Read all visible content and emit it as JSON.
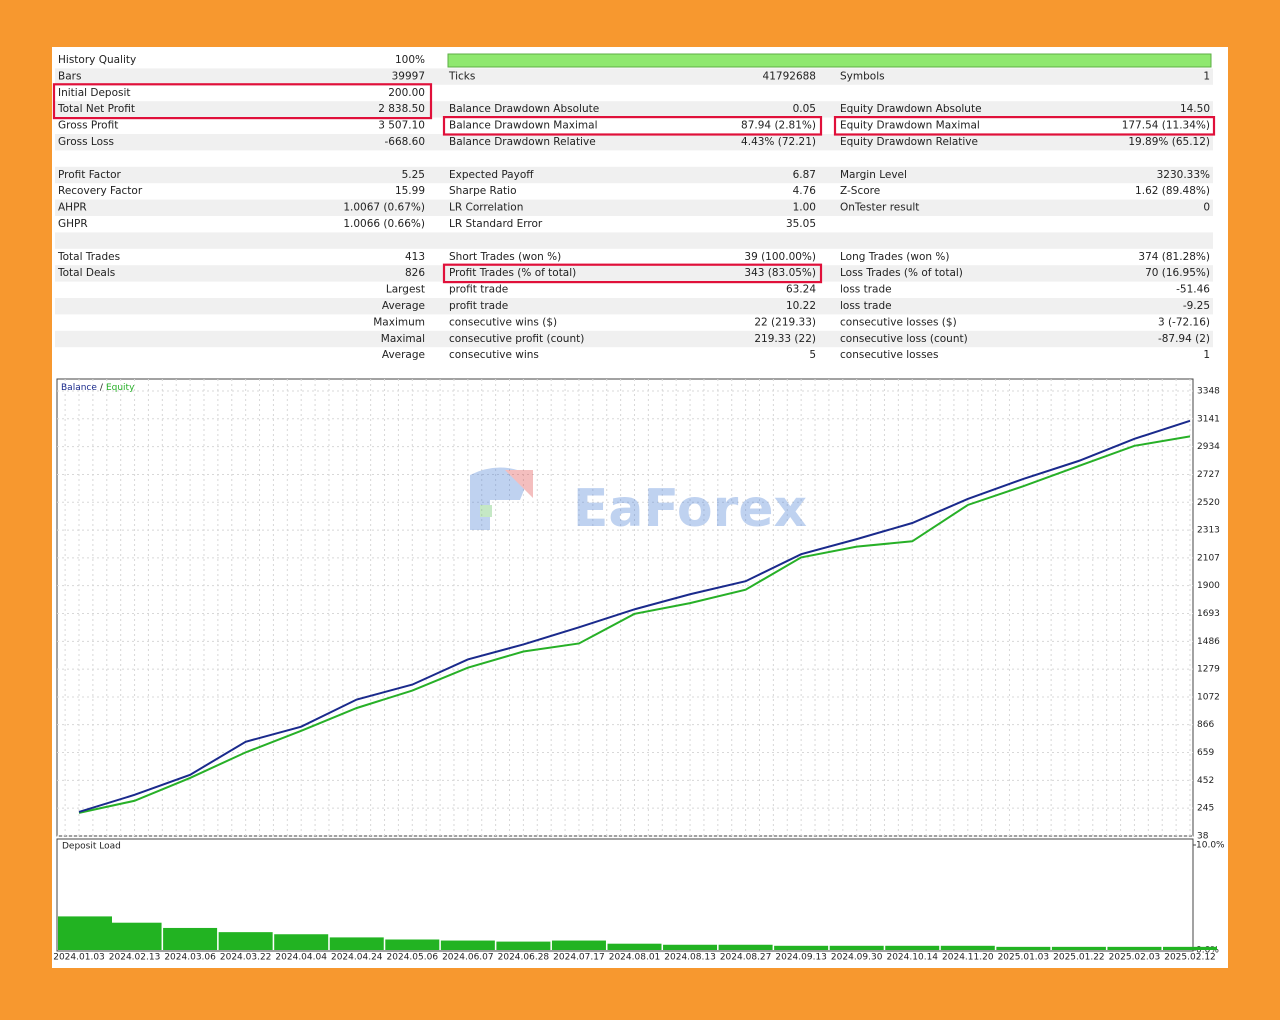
{
  "report": {
    "sections": [
      [
        {
          "c1": {
            "label": "History Quality",
            "value": "100%"
          }
        },
        {
          "c1": {
            "label": "Bars",
            "value": "39997"
          },
          "c2": {
            "label": "Ticks",
            "value": "41792688"
          },
          "c3": {
            "label": "Symbols",
            "value": "1"
          }
        },
        {
          "c1": {
            "label": "Initial Deposit",
            "value": "200.00",
            "highlight": true
          }
        },
        {
          "c1": {
            "label": "Total Net Profit",
            "value": "2 838.50",
            "highlight": true
          },
          "c2": {
            "label": "Balance Drawdown Absolute",
            "value": "0.05"
          },
          "c3": {
            "label": "Equity Drawdown Absolute",
            "value": "14.50"
          }
        },
        {
          "c1": {
            "label": "Gross Profit",
            "value": "3 507.10"
          },
          "c2": {
            "label": "Balance Drawdown Maximal",
            "value": "87.94 (2.81%)",
            "highlight": true
          },
          "c3": {
            "label": "Equity Drawdown Maximal",
            "value": "177.54 (11.34%)",
            "highlight": true
          }
        },
        {
          "c1": {
            "label": "Gross Loss",
            "value": "-668.60"
          },
          "c2": {
            "label": "Balance Drawdown Relative",
            "value": "4.43% (72.21)"
          },
          "c3": {
            "label": "Equity Drawdown Relative",
            "value": "19.89% (65.12)"
          }
        }
      ],
      [
        {
          "c1": {
            "label": "Profit Factor",
            "value": "5.25"
          },
          "c2": {
            "label": "Expected Payoff",
            "value": "6.87"
          },
          "c3": {
            "label": "Margin Level",
            "value": "3230.33%"
          }
        },
        {
          "c1": {
            "label": "Recovery Factor",
            "value": "15.99"
          },
          "c2": {
            "label": "Sharpe Ratio",
            "value": "4.76"
          },
          "c3": {
            "label": "Z-Score",
            "value": "1.62 (89.48%)"
          }
        },
        {
          "c1": {
            "label": "AHPR",
            "value": "1.0067 (0.67%)"
          },
          "c2": {
            "label": "LR Correlation",
            "value": "1.00"
          },
          "c3": {
            "label": "OnTester result",
            "value": "0"
          }
        },
        {
          "c1": {
            "label": "GHPR",
            "value": "1.0066 (0.66%)"
          },
          "c2": {
            "label": "LR Standard Error",
            "value": "35.05"
          }
        }
      ],
      [
        {
          "c1": {
            "label": "Total Trades",
            "value": "413"
          },
          "c2": {
            "label": "Short Trades (won %)",
            "value": "39 (100.00%)"
          },
          "c3": {
            "label": "Long Trades (won %)",
            "value": "374 (81.28%)"
          }
        },
        {
          "c1": {
            "label": "Total Deals",
            "value": "826"
          },
          "c2": {
            "label": "Profit Trades (% of total)",
            "value": "343 (83.05%)",
            "highlight": true
          },
          "c3": {
            "label": "Loss Trades (% of total)",
            "value": "70 (16.95%)"
          }
        },
        {
          "c1": {
            "label": "Largest"
          },
          "c2": {
            "label": "profit trade",
            "value": "63.24"
          },
          "c3": {
            "label": "loss trade",
            "value": "-51.46"
          }
        },
        {
          "c1": {
            "label": "Average"
          },
          "c2": {
            "label": "profit trade",
            "value": "10.22"
          },
          "c3": {
            "label": "loss trade",
            "value": "-9.25"
          }
        },
        {
          "c1": {
            "label": "Maximum"
          },
          "c2": {
            "label": "consecutive wins ($)",
            "value": "22 (219.33)"
          },
          "c3": {
            "label": "consecutive losses ($)",
            "value": "3 (-72.16)"
          }
        },
        {
          "c1": {
            "label": "Maximal"
          },
          "c2": {
            "label": "consecutive profit (count)",
            "value": "219.33 (22)"
          },
          "c3": {
            "label": "consecutive loss (count)",
            "value": "-87.94 (2)"
          }
        },
        {
          "c1": {
            "label": "Average"
          },
          "c2": {
            "label": "consecutive wins",
            "value": "5"
          },
          "c3": {
            "label": "consecutive losses",
            "value": "1"
          }
        }
      ]
    ]
  },
  "watermark": "EaForex",
  "chart_data": [
    {
      "type": "line",
      "legend_separator": "/",
      "categories": [
        "2024.01.03",
        "2024.02.13",
        "2024.03.06",
        "2024.03.22",
        "2024.04.04",
        "2024.04.24",
        "2024.05.06",
        "2024.06.07",
        "2024.06.28",
        "2024.07.17",
        "2024.08.01",
        "2024.08.13",
        "2024.08.27",
        "2024.09.13",
        "2024.09.30",
        "2024.10.14",
        "2024.11.20",
        "2025.01.03",
        "2025.01.22",
        "2025.02.03",
        "2025.02.12"
      ],
      "series": [
        {
          "name": "Equity",
          "color": "#27b027",
          "values": [
            210,
            300,
            470,
            660,
            820,
            990,
            1120,
            1290,
            1410,
            1470,
            1690,
            1770,
            1870,
            2110,
            2190,
            2230,
            2500,
            2640,
            2790,
            2940,
            3010
          ]
        },
        {
          "name": "Balance",
          "color": "#1a2a8c",
          "values": [
            217,
            344,
            493,
            739,
            851,
            1053,
            1164,
            1351,
            1463,
            1590,
            1724,
            1836,
            1933,
            2134,
            2246,
            2366,
            2545,
            2694,
            2828,
            2992,
            3126
          ]
        }
      ],
      "ylim": [
        38,
        3437
      ],
      "yticks": [
        3348,
        3141,
        2934,
        2727,
        2520,
        2313,
        2107,
        1900,
        1693,
        1486,
        1279,
        1072,
        866,
        659,
        452,
        245,
        38
      ],
      "grid": true
    },
    {
      "type": "bar",
      "title": "Deposit Load",
      "color": "#22b322",
      "values": [
        3.2,
        2.6,
        2.1,
        1.7,
        1.5,
        1.2,
        1.0,
        0.9,
        0.8,
        0.9,
        0.6,
        0.5,
        0.5,
        0.4,
        0.4,
        0.4,
        0.4,
        0.3,
        0.3,
        0.3,
        0.3
      ],
      "ylim": [
        0,
        10
      ],
      "yticks": [
        {
          "value": 10,
          "label": "10.0%"
        },
        {
          "value": 0,
          "label": "0.0%"
        }
      ]
    }
  ]
}
